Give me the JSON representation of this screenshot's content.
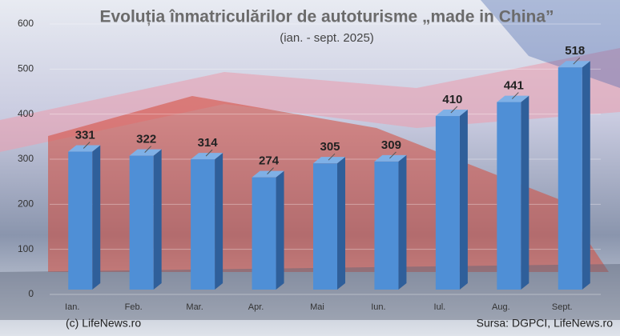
{
  "chart_data": {
    "type": "bar",
    "title": "Evoluția înmatriculărilor de autoturisme „made in China”",
    "subtitle": "(ian. - sept. 2025)",
    "categories": [
      "Ian.",
      "Feb.",
      "Mar.",
      "Apr.",
      "Mai",
      "Iun.",
      "Iul.",
      "Aug.",
      "Sept."
    ],
    "values": [
      331,
      322,
      314,
      274,
      305,
      309,
      410,
      441,
      518
    ],
    "color": "#4f8fd6",
    "ylim": [
      0,
      600
    ],
    "yticks": [
      0,
      100,
      200,
      300,
      400,
      500,
      600
    ],
    "grid": true,
    "footer_left": "(c) LifeNews.ro",
    "footer_right": "Sursa: DGPCI, LifeNews.ro"
  }
}
